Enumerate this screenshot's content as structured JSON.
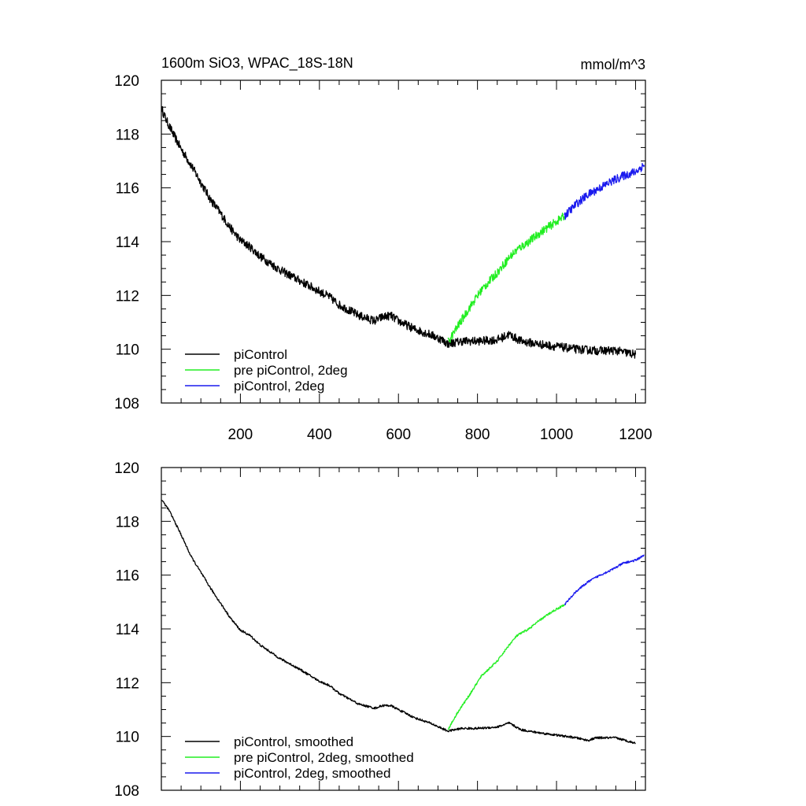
{
  "chart_data": [
    {
      "type": "line",
      "title": "1600m SiO3, WPAC_18S-18N",
      "units": "mmol/m^3",
      "xlim": [
        0,
        1225
      ],
      "ylim": [
        108,
        120
      ],
      "x_ticks": [
        200,
        400,
        600,
        800,
        1000,
        1200
      ],
      "y_ticks": [
        108,
        110,
        112,
        114,
        116,
        118,
        120
      ],
      "x_ticks_labeled": true,
      "legend_position": "bottom-left",
      "series": [
        {
          "name": "piControl",
          "color": "#000000",
          "noise": 0.16,
          "points": [
            [
              1,
              118.95
            ],
            [
              10,
              118.6
            ],
            [
              30,
              118.0
            ],
            [
              50,
              117.45
            ],
            [
              75,
              116.85
            ],
            [
              100,
              116.2
            ],
            [
              125,
              115.55
            ],
            [
              150,
              115.05
            ],
            [
              175,
              114.5
            ],
            [
              200,
              114.05
            ],
            [
              225,
              113.8
            ],
            [
              250,
              113.45
            ],
            [
              275,
              113.2
            ],
            [
              300,
              112.95
            ],
            [
              350,
              112.55
            ],
            [
              400,
              112.15
            ],
            [
              425,
              111.95
            ],
            [
              450,
              111.65
            ],
            [
              500,
              111.25
            ],
            [
              540,
              111.05
            ],
            [
              560,
              111.2
            ],
            [
              580,
              111.25
            ],
            [
              600,
              111.05
            ],
            [
              640,
              110.75
            ],
            [
              680,
              110.55
            ],
            [
              710,
              110.35
            ],
            [
              725,
              110.2
            ],
            [
              760,
              110.3
            ],
            [
              800,
              110.3
            ],
            [
              850,
              110.35
            ],
            [
              880,
              110.55
            ],
            [
              910,
              110.3
            ],
            [
              950,
              110.2
            ],
            [
              1000,
              110.1
            ],
            [
              1050,
              110.0
            ],
            [
              1100,
              109.95
            ],
            [
              1150,
              109.95
            ],
            [
              1200,
              109.8
            ]
          ]
        },
        {
          "name": "pre piControl, 2deg",
          "color": "#22ee22",
          "noise": 0.16,
          "points": [
            [
              725,
              110.25
            ],
            [
              750,
              110.85
            ],
            [
              780,
              111.55
            ],
            [
              810,
              112.2
            ],
            [
              850,
              112.85
            ],
            [
              880,
              113.4
            ],
            [
              900,
              113.7
            ],
            [
              930,
              114.0
            ],
            [
              960,
              114.35
            ],
            [
              990,
              114.65
            ],
            [
              1020,
              114.95
            ]
          ]
        },
        {
          "name": "piControl, 2deg",
          "color": "#1a1aee",
          "noise": 0.16,
          "points": [
            [
              1020,
              114.95
            ],
            [
              1050,
              115.4
            ],
            [
              1080,
              115.75
            ],
            [
              1110,
              116.0
            ],
            [
              1140,
              116.25
            ],
            [
              1170,
              116.45
            ],
            [
              1200,
              116.6
            ],
            [
              1222,
              116.85
            ]
          ]
        }
      ]
    },
    {
      "type": "line",
      "xlim": [
        0,
        1225
      ],
      "ylim": [
        108,
        120
      ],
      "x_ticks": [
        200,
        400,
        600,
        800,
        1000,
        1200
      ],
      "y_ticks": [
        108,
        110,
        112,
        114,
        116,
        118,
        120
      ],
      "x_ticks_labeled": false,
      "legend_position": "bottom-left",
      "series": [
        {
          "name": "piControl, smoothed",
          "color": "#000000",
          "noise": 0.04,
          "points": [
            [
              1,
              118.8
            ],
            [
              20,
              118.4
            ],
            [
              50,
              117.5
            ],
            [
              75,
              116.7
            ],
            [
              100,
              116.1
            ],
            [
              125,
              115.5
            ],
            [
              150,
              114.95
            ],
            [
              175,
              114.4
            ],
            [
              200,
              113.95
            ],
            [
              225,
              113.75
            ],
            [
              250,
              113.4
            ],
            [
              300,
              112.9
            ],
            [
              350,
              112.5
            ],
            [
              400,
              112.05
            ],
            [
              425,
              111.9
            ],
            [
              450,
              111.6
            ],
            [
              500,
              111.2
            ],
            [
              540,
              111.05
            ],
            [
              560,
              111.15
            ],
            [
              580,
              111.15
            ],
            [
              600,
              111.0
            ],
            [
              640,
              110.7
            ],
            [
              680,
              110.5
            ],
            [
              710,
              110.3
            ],
            [
              725,
              110.2
            ],
            [
              760,
              110.3
            ],
            [
              800,
              110.3
            ],
            [
              850,
              110.35
            ],
            [
              880,
              110.5
            ],
            [
              910,
              110.25
            ],
            [
              950,
              110.15
            ],
            [
              1000,
              110.05
            ],
            [
              1050,
              109.95
            ],
            [
              1080,
              109.85
            ],
            [
              1100,
              109.95
            ],
            [
              1150,
              109.95
            ],
            [
              1200,
              109.75
            ]
          ]
        },
        {
          "name": "pre piControl, 2deg, smoothed",
          "color": "#22ee22",
          "noise": 0.04,
          "points": [
            [
              725,
              110.25
            ],
            [
              750,
              110.9
            ],
            [
              780,
              111.55
            ],
            [
              810,
              112.25
            ],
            [
              850,
              112.8
            ],
            [
              880,
              113.4
            ],
            [
              900,
              113.75
            ],
            [
              930,
              114.0
            ],
            [
              960,
              114.35
            ],
            [
              990,
              114.65
            ],
            [
              1020,
              114.9
            ]
          ]
        },
        {
          "name": "piControl, 2deg, smoothed",
          "color": "#1a1aee",
          "noise": 0.04,
          "points": [
            [
              1020,
              114.9
            ],
            [
              1050,
              115.4
            ],
            [
              1080,
              115.75
            ],
            [
              1110,
              116.0
            ],
            [
              1140,
              116.2
            ],
            [
              1170,
              116.45
            ],
            [
              1200,
              116.55
            ],
            [
              1222,
              116.75
            ]
          ]
        }
      ]
    }
  ]
}
